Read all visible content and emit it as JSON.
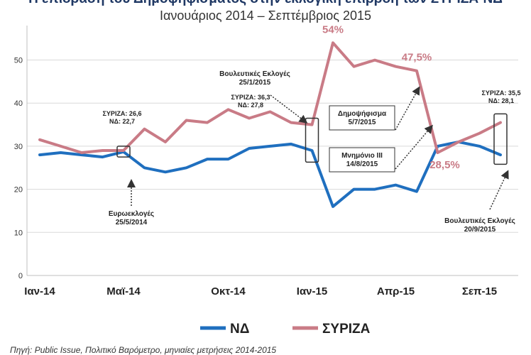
{
  "chart_data": {
    "type": "line",
    "title": "Η επίδραση του Δημοψηφίσματος στην εκλογική επιρροή των ΣΥΡΙΖΑ-ΝΔ",
    "subtitle": "Ιανουάριος 2014 – Σεπτέμβριος 2015",
    "source": "Πηγή: Public Issue, Πολιτικό Βαρόμετρο, μηνιαίες μετρήσεις 2014-2015",
    "ylim": [
      0,
      58
    ],
    "yticks": [
      0,
      10,
      20,
      30,
      40,
      50
    ],
    "xticks": [
      {
        "label": "Ιαν-14",
        "index": 0
      },
      {
        "label": "Μαϊ-14",
        "index": 4
      },
      {
        "label": "Οκτ-14",
        "index": 9
      },
      {
        "label": "Ιαν-15",
        "index": 13
      },
      {
        "label": "Απρ-15",
        "index": 17
      },
      {
        "label": "Σεπ-15",
        "index": 21
      }
    ],
    "grid": true,
    "legend_position": "bottom",
    "series": [
      {
        "name": "ΝΔ",
        "color": "#1f6fbf",
        "values": [
          28,
          28.5,
          28,
          27.5,
          28.7,
          25,
          24,
          25,
          27,
          27,
          29.5,
          30,
          30.5,
          29,
          16,
          20,
          20,
          21,
          19.5,
          30,
          31,
          30,
          28
        ]
      },
      {
        "name": "ΣΥΡΙΖΑ",
        "color": "#c97b86",
        "values": [
          31.5,
          30,
          28.5,
          29,
          29,
          34,
          31,
          36,
          35.5,
          38.5,
          36.5,
          38,
          35.5,
          35,
          54,
          48.5,
          50,
          48.5,
          47.5,
          28.5,
          31,
          33,
          35.5
        ]
      }
    ],
    "value_labels": [
      {
        "text": "54%",
        "series": 1,
        "index": 14
      },
      {
        "text": "47,5%",
        "series": 1,
        "index": 18
      },
      {
        "text": "28,5%",
        "series": 1,
        "index": 19
      }
    ],
    "annotations": [
      {
        "id": "euro",
        "lines": [
          "ΣΥΡΙΖΑ: 26,6",
          "ΝΔ: 22,7"
        ]
      },
      {
        "id": "euro-label",
        "lines": [
          "Ευρωεκλογές",
          "25/5/2014"
        ]
      },
      {
        "id": "jan-label",
        "lines": [
          "Βουλευτικές Εκλογές",
          "25/1/2015"
        ]
      },
      {
        "id": "jan-values",
        "lines": [
          "ΣΥΡΙΖΑ: 36,3",
          "ΝΔ: 27,8"
        ]
      },
      {
        "id": "ref",
        "lines": [
          "Δημοψήφισμα",
          "5/7/2015"
        ]
      },
      {
        "id": "mem",
        "lines": [
          "Μνημόνιο ΙΙΙ",
          "14/8/2015"
        ]
      },
      {
        "id": "sep-values",
        "lines": [
          "ΣΥΡΙΖΑ: 35,5",
          "ΝΔ: 28,1"
        ]
      },
      {
        "id": "sep-label",
        "lines": [
          "Βουλευτικές Εκλογές",
          "20/9/2015"
        ]
      }
    ]
  }
}
